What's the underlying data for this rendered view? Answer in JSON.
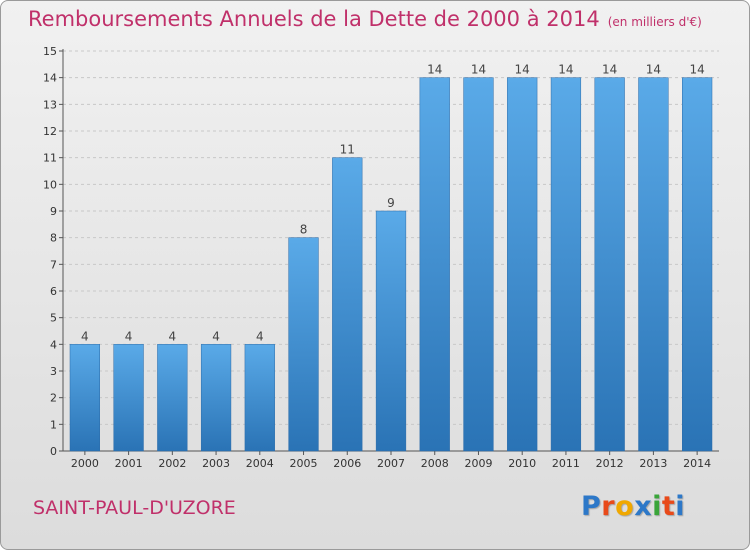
{
  "title": "Remboursements Annuels de la Dette de 2000 à 2014",
  "unit": "(en milliers d'€)",
  "location": "SAINT-PAUL-D'UZORE",
  "logo": {
    "text": "Proxiti",
    "letter_colors": [
      "#2d78c8",
      "#e84a1a",
      "#f0a800",
      "#2d78c8",
      "#3aa53a",
      "#e84a1a",
      "#2d78c8"
    ]
  },
  "colors": {
    "bar": "#3d8fd6",
    "bar_light": "#5aaae8",
    "bar_dark": "#2a73b5",
    "title": "#c0306a"
  },
  "chart_data": {
    "type": "bar",
    "categories": [
      "2000",
      "2001",
      "2002",
      "2003",
      "2004",
      "2005",
      "2006",
      "2007",
      "2008",
      "2009",
      "2010",
      "2011",
      "2012",
      "2013",
      "2014"
    ],
    "values": [
      4,
      4,
      4,
      4,
      4,
      8,
      11,
      9,
      14,
      14,
      14,
      14,
      14,
      14,
      14
    ],
    "title": "Remboursements Annuels de la Dette de 2000 à 2014",
    "xlabel": "",
    "ylabel": "",
    "ylim": [
      0,
      15
    ],
    "yticks": [
      0,
      1,
      2,
      3,
      4,
      5,
      6,
      7,
      8,
      9,
      10,
      11,
      12,
      13,
      14,
      15
    ],
    "grid": true,
    "data_labels": true
  }
}
